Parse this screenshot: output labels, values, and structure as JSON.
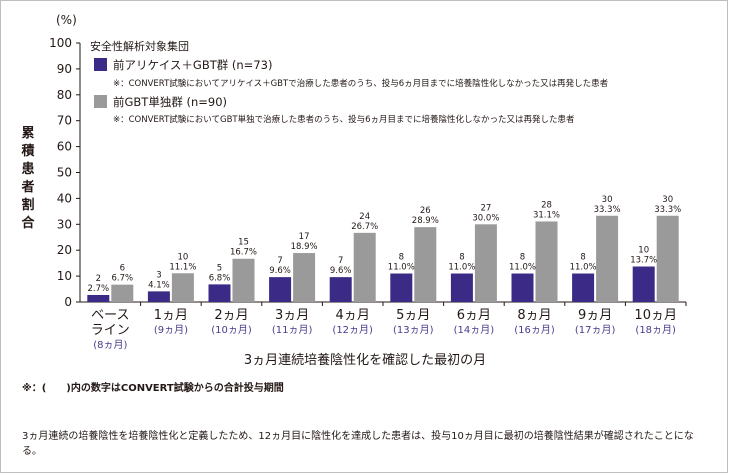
{
  "chart_data": {
    "type": "bar",
    "unit_label": "(%)",
    "ylabel": "累積患者割合",
    "xlabel": "3ヵ月連続培養陰性化を確認した最初の月",
    "ylim": [
      0,
      100
    ],
    "yticks": [
      0,
      10,
      20,
      30,
      40,
      50,
      60,
      70,
      80,
      90,
      100
    ],
    "legend": {
      "title": "安全性解析対象集団",
      "placement": "top-left"
    },
    "categories": [
      {
        "label": [
          "ベース",
          "ライン"
        ],
        "sub": "(8ヵ月)"
      },
      {
        "label": [
          "1ヵ月"
        ],
        "sub": "(9ヵ月)"
      },
      {
        "label": [
          "2ヵ月"
        ],
        "sub": "(10ヵ月)"
      },
      {
        "label": [
          "3ヵ月"
        ],
        "sub": "(11ヵ月)"
      },
      {
        "label": [
          "4ヵ月"
        ],
        "sub": "(12ヵ月)"
      },
      {
        "label": [
          "5ヵ月"
        ],
        "sub": "(13ヵ月)"
      },
      {
        "label": [
          "6ヵ月"
        ],
        "sub": "(14ヵ月)"
      },
      {
        "label": [
          "8ヵ月"
        ],
        "sub": "(16ヵ月)"
      },
      {
        "label": [
          "9ヵ月"
        ],
        "sub": "(17ヵ月)"
      },
      {
        "label": [
          "10ヵ月"
        ],
        "sub": "(18ヵ月)"
      }
    ],
    "series": [
      {
        "name": "前アリケイス＋GBT群 (n=73)",
        "note": "※：CONVERT試験においてアリケイス＋GBTで治療した患者のうち、投与6ヵ月目までに培養陰性化しなかった又は再発した患者",
        "color": "#3b2a86",
        "values": [
          2.7,
          4.1,
          6.8,
          9.6,
          9.6,
          11.0,
          11.0,
          11.0,
          11.0,
          13.7
        ],
        "counts": [
          "2",
          "3",
          "5",
          "7",
          "7",
          "8",
          "8",
          "8",
          "8",
          "10"
        ],
        "pct_labels": [
          "2.7%",
          "4.1%",
          "6.8%",
          "9.6%",
          "9.6%",
          "11.0%",
          "11.0%",
          "11.0%",
          "11.0%",
          "13.7%"
        ]
      },
      {
        "name": "前GBT単独群 (n=90)",
        "note": "※：CONVERT試験においてGBT単独で治療した患者のうち、投与6ヵ月目までに培養陰性化しなかった又は再発した患者",
        "color": "#9a9a9a",
        "values": [
          6.7,
          11.1,
          16.7,
          18.9,
          26.7,
          28.9,
          30.0,
          31.1,
          33.3,
          33.3
        ],
        "counts": [
          "6",
          "10",
          "15",
          "17",
          "24",
          "26",
          "27",
          "28",
          "30",
          "30"
        ],
        "pct_labels": [
          "6.7%",
          "11.1%",
          "16.7%",
          "18.9%",
          "26.7%",
          "28.9%",
          "30.0%",
          "31.1%",
          "33.3%",
          "33.3%"
        ]
      }
    ]
  },
  "footnote": "※：(　　)内の数字はCONVERT試験からの合計投与期間",
  "body_text": "3ヵ月連続の培養陰性を培養陰性化と定義したため、12ヵ月目に陰性化を達成した患者は、投与10ヵ月目に最初の培養陰性結果が確認されたことになる。"
}
